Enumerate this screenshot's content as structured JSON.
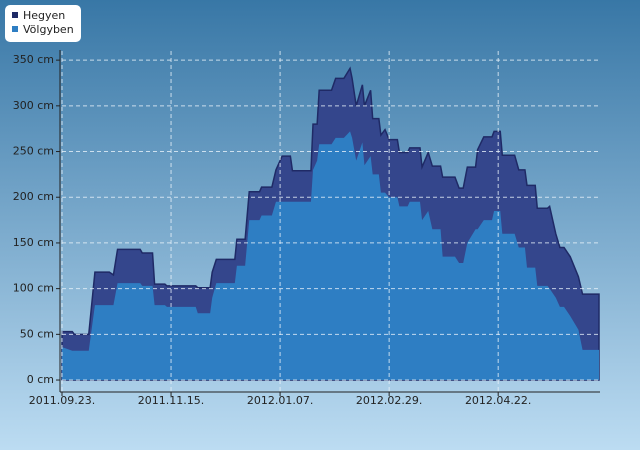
{
  "chart_data": {
    "type": "area",
    "x": [
      "2011-09-23",
      "2011-09-28",
      "2011-09-29",
      "2011-10-06",
      "2011-10-09",
      "2011-10-16",
      "2011-10-18",
      "2011-10-20",
      "2011-10-31",
      "2011-11-01",
      "2011-11-06",
      "2011-11-07",
      "2011-11-12",
      "2011-11-13",
      "2011-11-27",
      "2011-11-28",
      "2011-12-04",
      "2011-12-05",
      "2011-12-07",
      "2011-12-16",
      "2011-12-17",
      "2011-12-21",
      "2011-12-23",
      "2011-12-28",
      "2011-12-29",
      "2012-01-03",
      "2012-01-05",
      "2012-01-08",
      "2012-01-12",
      "2012-01-13",
      "2012-01-22",
      "2012-01-23",
      "2012-01-25",
      "2012-01-26",
      "2012-02-01",
      "2012-02-03",
      "2012-02-07",
      "2012-02-10",
      "2012-02-11",
      "2012-02-13",
      "2012-02-16",
      "2012-02-17",
      "2012-02-20",
      "2012-02-21",
      "2012-02-24",
      "2012-02-25",
      "2012-02-27",
      "2012-02-29",
      "2012-03-04",
      "2012-03-05",
      "2012-03-09",
      "2012-03-10",
      "2012-03-15",
      "2012-03-16",
      "2012-03-19",
      "2012-03-21",
      "2012-03-25",
      "2012-03-26",
      "2012-04-01",
      "2012-04-03",
      "2012-04-05",
      "2012-04-07",
      "2012-04-11",
      "2012-04-12",
      "2012-04-15",
      "2012-04-19",
      "2012-04-20",
      "2012-04-23",
      "2012-04-24",
      "2012-04-30",
      "2012-05-02",
      "2012-05-05",
      "2012-05-06",
      "2012-05-10",
      "2012-05-11",
      "2012-05-16",
      "2012-05-17",
      "2012-05-20",
      "2012-05-22",
      "2012-05-24",
      "2012-05-27",
      "2012-05-31",
      "2012-06-02",
      "2012-06-10"
    ],
    "series": [
      {
        "name": "Hegyen",
        "color": "#34468c",
        "values": [
          53,
          53,
          50,
          50,
          118,
          118,
          115,
          143,
          143,
          139,
          139,
          105,
          105,
          103,
          103,
          101,
          101,
          118,
          132,
          132,
          154,
          154,
          206,
          206,
          211,
          211,
          230,
          245,
          245,
          229,
          229,
          280,
          280,
          317,
          317,
          330,
          330,
          341,
          330,
          300,
          323,
          300,
          317,
          286,
          286,
          268,
          274,
          263,
          263,
          249,
          249,
          254,
          254,
          233,
          249,
          234,
          234,
          222,
          222,
          210,
          210,
          233,
          233,
          252,
          266,
          266,
          272,
          272,
          246,
          246,
          230,
          230,
          213,
          213,
          188,
          188,
          190,
          160,
          145,
          145,
          135,
          113,
          94,
          94
        ]
      },
      {
        "name": "Völgyben",
        "color": "#2e7ec3",
        "values": [
          36,
          32,
          32,
          32,
          82,
          82,
          82,
          106,
          106,
          103,
          103,
          82,
          82,
          80,
          80,
          73,
          73,
          90,
          106,
          106,
          125,
          125,
          175,
          175,
          180,
          180,
          195,
          195,
          195,
          195,
          195,
          230,
          240,
          258,
          258,
          265,
          265,
          272,
          265,
          240,
          260,
          235,
          245,
          225,
          225,
          205,
          205,
          200,
          200,
          190,
          190,
          195,
          195,
          175,
          185,
          165,
          165,
          135,
          135,
          128,
          128,
          150,
          165,
          165,
          175,
          175,
          185,
          185,
          160,
          160,
          145,
          145,
          123,
          123,
          103,
          103,
          100,
          90,
          80,
          80,
          70,
          55,
          33,
          33
        ]
      }
    ],
    "xlim": [
      "2011-09-23",
      "2012-06-10"
    ],
    "xticks": [
      {
        "value": "2011-09-23",
        "label": "2011.09.23."
      },
      {
        "value": "2011-11-15",
        "label": "2011.11.15."
      },
      {
        "value": "2012-01-07",
        "label": "2012.01.07."
      },
      {
        "value": "2012-02-29",
        "label": "2012.02.29."
      },
      {
        "value": "2012-04-22",
        "label": "2012.04.22."
      }
    ],
    "ylim": [
      -12,
      360
    ],
    "yticks": [
      {
        "value": 0,
        "label": "0 cm"
      },
      {
        "value": 50,
        "label": "50 cm"
      },
      {
        "value": 100,
        "label": "100 cm"
      },
      {
        "value": 150,
        "label": "150 cm"
      },
      {
        "value": 200,
        "label": "200 cm"
      },
      {
        "value": 250,
        "label": "250 cm"
      },
      {
        "value": 300,
        "label": "300 cm"
      },
      {
        "value": 350,
        "label": "350 cm"
      }
    ],
    "grid": true,
    "legend": "top-left"
  }
}
